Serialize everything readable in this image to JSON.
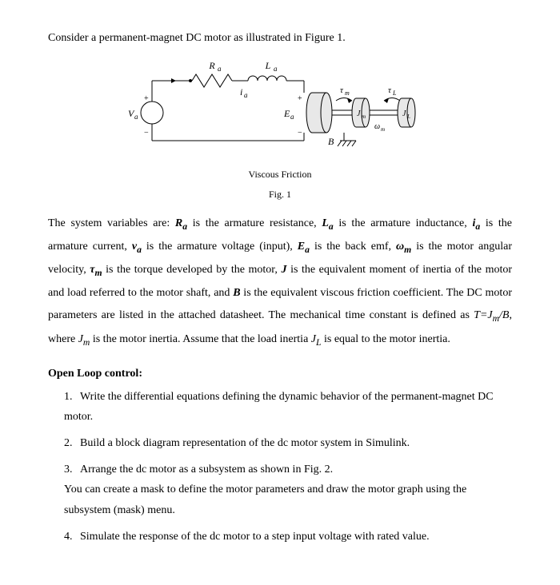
{
  "intro": "Consider a permanent-magnet DC motor as illustrated in Figure 1.",
  "figure": {
    "labels": {
      "Ra": "Rₐ",
      "La": "Lₐ",
      "ia": "iₐ",
      "Va": "Vₐ",
      "Ea": "Eₐ",
      "tm": "τₘ",
      "tL": "τL",
      "Jm": "Jₘ",
      "JL": "JL",
      "wm": "ωₘ",
      "B": "B",
      "plus": "+",
      "minus": "−"
    },
    "caption": "Viscous Friction",
    "fig_label": "Fig. 1",
    "colors": {
      "stroke": "#000000",
      "fill": "#ffffff",
      "motor_fill": "#e8e8e8"
    }
  },
  "body": "The system variables are: <b><i>R<sub>a</sub></i></b> is the armature resistance, <b><i>L<sub>a</sub></i></b> is the armature inductance, <b><i>i<sub>a</sub></i></b> is the armature current, <b><i>v<sub>a</sub></i></b> is the armature voltage (input), <b><i>E<sub>a</sub></i></b> is the back emf, <b><i>ω<sub>m</sub></i></b> is the motor angular velocity, <b><i>τ<sub>m</sub></i></b> is the torque developed by the motor, <b><i>J</i></b> is the equivalent moment of inertia of the motor and load referred to the motor shaft, and <b><i>B</i></b> is the equivalent viscous friction coefficient. The DC motor parameters are listed in the attached datasheet. The mechanical time constant is defined as <i>T=J<sub>m</sub>/B</i>, where <i>J<sub>m</sub></i> is the motor inertia. Assume that the load inertia <i>J<sub>L</sub></i> is equal to the motor inertia.",
  "section_header": "Open Loop control:",
  "list": [
    "Write the differential equations defining the dynamic behavior of the permanent-magnet DC motor.",
    "Build a block diagram representation of the dc motor system in Simulink.",
    "Arrange the dc motor as a subsystem as shown in Fig. 2.<br>You can create a mask to define the motor parameters and draw the motor graph using the subsystem (mask) menu.",
    "Simulate the response of the dc motor to a step input voltage with rated value."
  ]
}
